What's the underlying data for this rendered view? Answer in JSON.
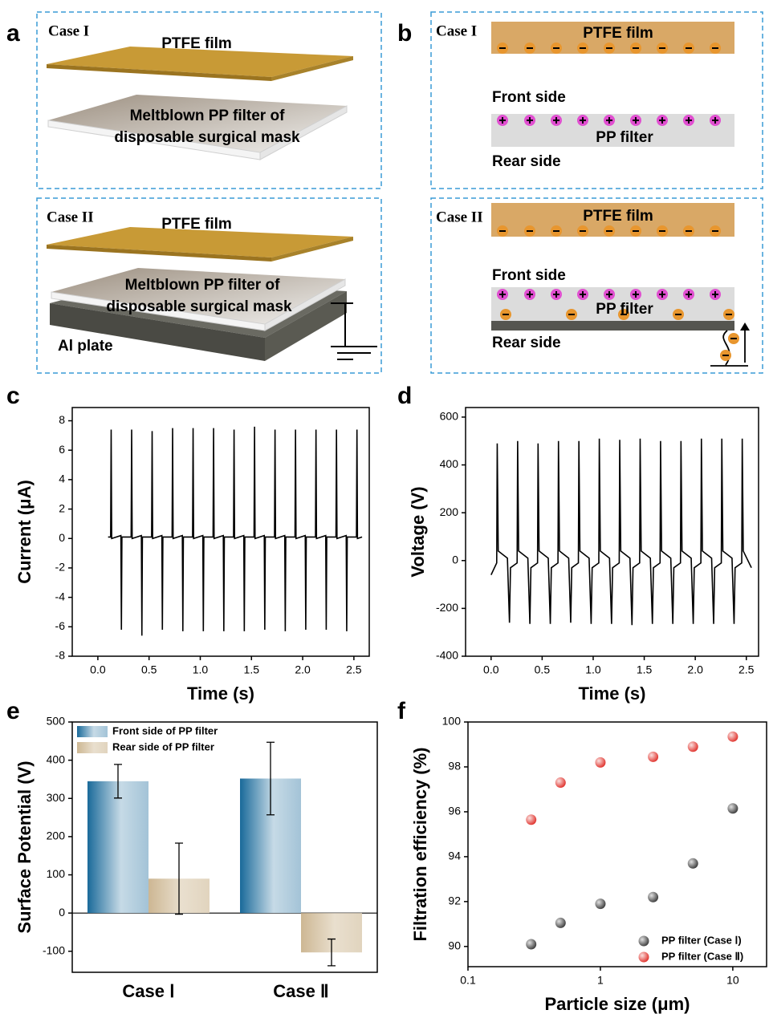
{
  "panel_a": {
    "label": "a",
    "cases": [
      {
        "name": "Case I",
        "film": "PTFE film",
        "filter_lines": [
          "Meltblown PP filter of",
          "disposable surgical mask"
        ]
      },
      {
        "name": "Case II",
        "film": "PTFE film",
        "filter_lines": [
          "Meltblown PP filter of",
          "disposable surgical mask"
        ],
        "plate": "Al plate"
      }
    ]
  },
  "panel_b": {
    "label": "b",
    "cases": [
      {
        "name": "Case I",
        "film": "PTFE film",
        "front": "Front side",
        "filter": "PP filter",
        "rear": "Rear side"
      },
      {
        "name": "Case II",
        "film": "PTFE film",
        "front": "Front side",
        "filter": "PP filter",
        "rear": "Rear side"
      }
    ]
  },
  "chart_data": [
    {
      "type": "line",
      "panel": "c",
      "xlabel": "Time (s)",
      "ylabel": "Current (μA)",
      "color": "#000000",
      "x": [
        0.1,
        0.125,
        0.13,
        0.135,
        0.225,
        0.23,
        0.235,
        0.325,
        0.33,
        0.335,
        0.425,
        0.43,
        0.435,
        0.525,
        0.53,
        0.535,
        0.625,
        0.63,
        0.635,
        0.725,
        0.73,
        0.735,
        0.825,
        0.83,
        0.835,
        0.925,
        0.93,
        0.935,
        1.025,
        1.03,
        1.035,
        1.125,
        1.13,
        1.135,
        1.225,
        1.23,
        1.235,
        1.325,
        1.33,
        1.335,
        1.425,
        1.43,
        1.435,
        1.525,
        1.53,
        1.535,
        1.625,
        1.63,
        1.635,
        1.725,
        1.73,
        1.735,
        1.825,
        1.83,
        1.835,
        1.925,
        1.93,
        1.935,
        2.025,
        2.03,
        2.035,
        2.125,
        2.13,
        2.135,
        2.225,
        2.23,
        2.235,
        2.325,
        2.33,
        2.335,
        2.425,
        2.43,
        2.435,
        2.525,
        2.53,
        2.535,
        2.58
      ],
      "values": [
        0.1,
        0.1,
        7.4,
        0,
        0.2,
        -6.2,
        0.1,
        0.1,
        7.4,
        0,
        0.2,
        -6.6,
        0.1,
        0.1,
        7.3,
        0,
        0.2,
        -6.2,
        0.1,
        0.1,
        7.5,
        0,
        0.2,
        -6.3,
        0.1,
        0.1,
        7.5,
        0,
        0.2,
        -6.3,
        0.1,
        0.1,
        7.5,
        0,
        0.2,
        -6.3,
        0.1,
        0.1,
        7.4,
        0,
        0.2,
        -6.3,
        0.1,
        0.1,
        7.6,
        0,
        0.2,
        -6.2,
        0.1,
        0.1,
        7.4,
        0,
        0.2,
        -6.3,
        0.1,
        0.1,
        7.4,
        0,
        0.2,
        -6.2,
        0.1,
        0.1,
        7.4,
        0,
        0.2,
        -6.2,
        0.1,
        0.1,
        7.4,
        0,
        0.2,
        -6.3,
        0.1,
        0.1,
        7.4,
        0,
        0.1
      ],
      "xlim": [
        -0.25,
        2.65
      ],
      "xticks": [
        {
          "value": 0,
          "label": "0.0"
        },
        0.5,
        {
          "value": 1,
          "label": "1.0"
        },
        1.5,
        {
          "value": 2,
          "label": "2.0"
        },
        2.5
      ],
      "ylim": [
        -8,
        8.9
      ],
      "yticks": [
        -8,
        -6,
        -4,
        -2,
        0,
        2,
        4,
        6,
        8
      ]
    },
    {
      "type": "line",
      "panel": "d",
      "xlabel": "Time (s)",
      "ylabel": "Voltage (V)",
      "color": "#000000",
      "x": [
        0,
        0.055,
        0.06,
        0.07,
        0.16,
        0.18,
        0.19,
        0.255,
        0.26,
        0.27,
        0.36,
        0.38,
        0.39,
        0.455,
        0.46,
        0.47,
        0.56,
        0.58,
        0.59,
        0.655,
        0.66,
        0.67,
        0.76,
        0.78,
        0.79,
        0.855,
        0.86,
        0.87,
        0.96,
        0.98,
        0.99,
        1.055,
        1.06,
        1.07,
        1.16,
        1.18,
        1.19,
        1.255,
        1.26,
        1.27,
        1.36,
        1.38,
        1.39,
        1.455,
        1.46,
        1.47,
        1.56,
        1.58,
        1.59,
        1.655,
        1.66,
        1.67,
        1.76,
        1.78,
        1.79,
        1.855,
        1.86,
        1.87,
        1.96,
        1.98,
        1.99,
        2.055,
        2.06,
        2.07,
        2.16,
        2.18,
        2.19,
        2.255,
        2.26,
        2.27,
        2.36,
        2.38,
        2.39,
        2.455,
        2.46,
        2.47,
        2.55
      ],
      "values": [
        -60,
        -10,
        490,
        40,
        10,
        -260,
        -30,
        -10,
        500,
        40,
        10,
        -265,
        -30,
        -10,
        490,
        40,
        10,
        -265,
        -30,
        -10,
        500,
        40,
        10,
        -260,
        -30,
        -10,
        500,
        40,
        10,
        -265,
        -30,
        -10,
        510,
        40,
        10,
        -265,
        -30,
        -10,
        505,
        40,
        10,
        -270,
        -30,
        -10,
        510,
        40,
        10,
        -265,
        -30,
        -10,
        500,
        40,
        10,
        -265,
        -30,
        -10,
        500,
        40,
        10,
        -265,
        -30,
        -10,
        510,
        40,
        10,
        -265,
        -30,
        -10,
        510,
        40,
        10,
        -265,
        -30,
        -10,
        510,
        40,
        -30
      ],
      "xlim": [
        -0.25,
        2.62
      ],
      "xticks": [
        {
          "value": 0,
          "label": "0.0"
        },
        0.5,
        {
          "value": 1,
          "label": "1.0"
        },
        1.5,
        {
          "value": 2,
          "label": "2.0"
        },
        2.5
      ],
      "ylim": [
        -400,
        640
      ],
      "yticks": [
        -400,
        -200,
        0,
        200,
        400,
        600
      ]
    },
    {
      "type": "bar",
      "panel": "e",
      "ylabel": "Surface Potential  (V)",
      "categories": [
        "Case Ⅰ",
        "Case Ⅱ"
      ],
      "series": [
        {
          "name": "Front side of PP filter",
          "color": "#1a6a9a",
          "values": [
            345,
            352
          ],
          "errors": [
            44,
            95
          ]
        },
        {
          "name": "Rear side of PP filter",
          "color": "#cdb793",
          "values": [
            90,
            -103
          ],
          "errors": [
            93,
            35
          ]
        }
      ],
      "ylim": [
        -155,
        500
      ],
      "yticks": [
        -100,
        0,
        100,
        200,
        300,
        400,
        500
      ],
      "legend": "upper left",
      "zero_line": true
    },
    {
      "type": "scatter",
      "panel": "f",
      "xlabel": "Particle size (μm)",
      "ylabel": "Filtration efficiency (%)",
      "log_x": true,
      "xlim": [
        0.1,
        18
      ],
      "xticks": [
        0.1,
        1,
        10
      ],
      "ylim": [
        89.1,
        100
      ],
      "yticks": [
        90,
        92,
        94,
        96,
        98,
        100
      ],
      "legend": "lower right",
      "series": [
        {
          "name": "PP filter (Case Ⅰ)",
          "color": "#3a3a3a",
          "x": [
            0.3,
            0.5,
            1,
            2.5,
            5,
            10
          ],
          "values": [
            90.1,
            91.05,
            91.9,
            92.2,
            93.7,
            96.15
          ]
        },
        {
          "name": "PP filter (Case Ⅱ)",
          "color": "#e0302a",
          "x": [
            0.3,
            0.5,
            1,
            2.5,
            5,
            10
          ],
          "values": [
            95.65,
            97.3,
            98.2,
            98.45,
            98.9,
            99.35
          ]
        }
      ]
    }
  ]
}
